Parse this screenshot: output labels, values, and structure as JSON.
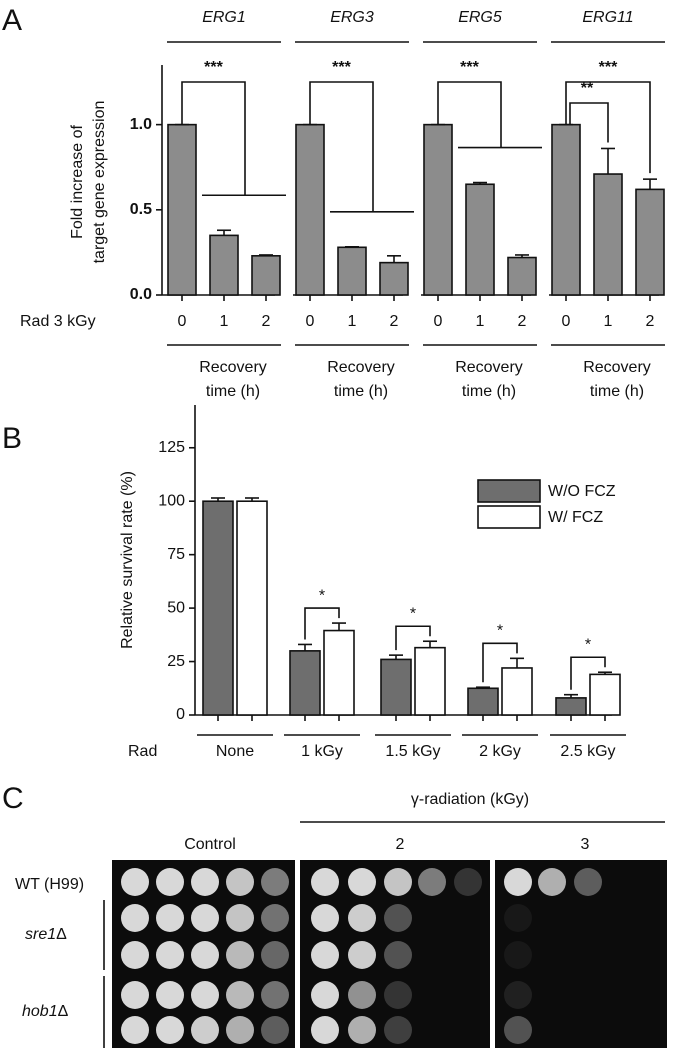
{
  "panel_labels": [
    "A",
    "B",
    "C"
  ],
  "chart_data": [
    {
      "type": "bar",
      "ylabel": [
        "Fold increase of",
        "target gene expression"
      ],
      "x_prefix": "Rad 3 kGy",
      "group_caption": [
        "Recovery",
        "time (h)"
      ],
      "categories": [
        "0",
        "1",
        "2"
      ],
      "series": [
        {
          "name": "ERG1",
          "color": "#8c8c8c",
          "values": [
            1.0,
            0.35,
            0.23
          ],
          "errors": [
            0,
            0.03,
            0.005
          ]
        },
        {
          "name": "ERG3",
          "color": "#8c8c8c",
          "values": [
            1.0,
            0.28,
            0.19
          ],
          "errors": [
            0,
            0.003,
            0.04
          ]
        },
        {
          "name": "ERG5",
          "color": "#8c8c8c",
          "values": [
            1.0,
            0.65,
            0.22
          ],
          "errors": [
            0,
            0.01,
            0.015
          ]
        },
        {
          "name": "ERG11",
          "color": "#8c8c8c",
          "values": [
            1.0,
            0.71,
            0.62
          ],
          "errors": [
            0,
            0.15,
            0.06
          ]
        }
      ],
      "significance": [
        [
          "***"
        ],
        [
          "***"
        ],
        [
          "***"
        ],
        [
          "***",
          "**"
        ]
      ],
      "ylim": [
        0,
        1.35
      ],
      "yticks": [
        {
          "value": 0,
          "label": "0.0"
        },
        0.5,
        {
          "value": 1,
          "label": "1.0"
        }
      ],
      "grid": false
    },
    {
      "type": "bar",
      "ylabel": "Relative survival rate (%)",
      "x_prefix": "Rad",
      "categories": [
        "None",
        "1 kGy",
        "1.5 kGy",
        "2 kGy",
        "2.5 kGy"
      ],
      "series": [
        {
          "name": "W/O FCZ",
          "color": "#6e6e6e",
          "values": [
            100,
            30,
            26,
            12.5,
            8
          ],
          "errors": [
            1.5,
            3,
            2,
            0.5,
            1.5
          ]
        },
        {
          "name": "W/ FCZ",
          "color": "#ffffff",
          "values": [
            100,
            39.5,
            31.5,
            22,
            19
          ],
          "errors": [
            1.5,
            3.5,
            3,
            4.5,
            1
          ]
        }
      ],
      "significance": [
        null,
        "*",
        "*",
        "*",
        "*"
      ],
      "ylim": [
        0,
        145
      ],
      "yticks": [
        0,
        25,
        50,
        75,
        100,
        125
      ],
      "legend": "upper right",
      "grid": false
    }
  ],
  "panel_c": {
    "title": "γ-radiation (kGy)",
    "columns": [
      "Control",
      "2",
      "3"
    ],
    "strains": [
      {
        "name": "WT (H99)"
      },
      {
        "gene": "sre1",
        "mark": "Δ"
      },
      {
        "gene": "hob1",
        "mark": "Δ"
      }
    ]
  }
}
